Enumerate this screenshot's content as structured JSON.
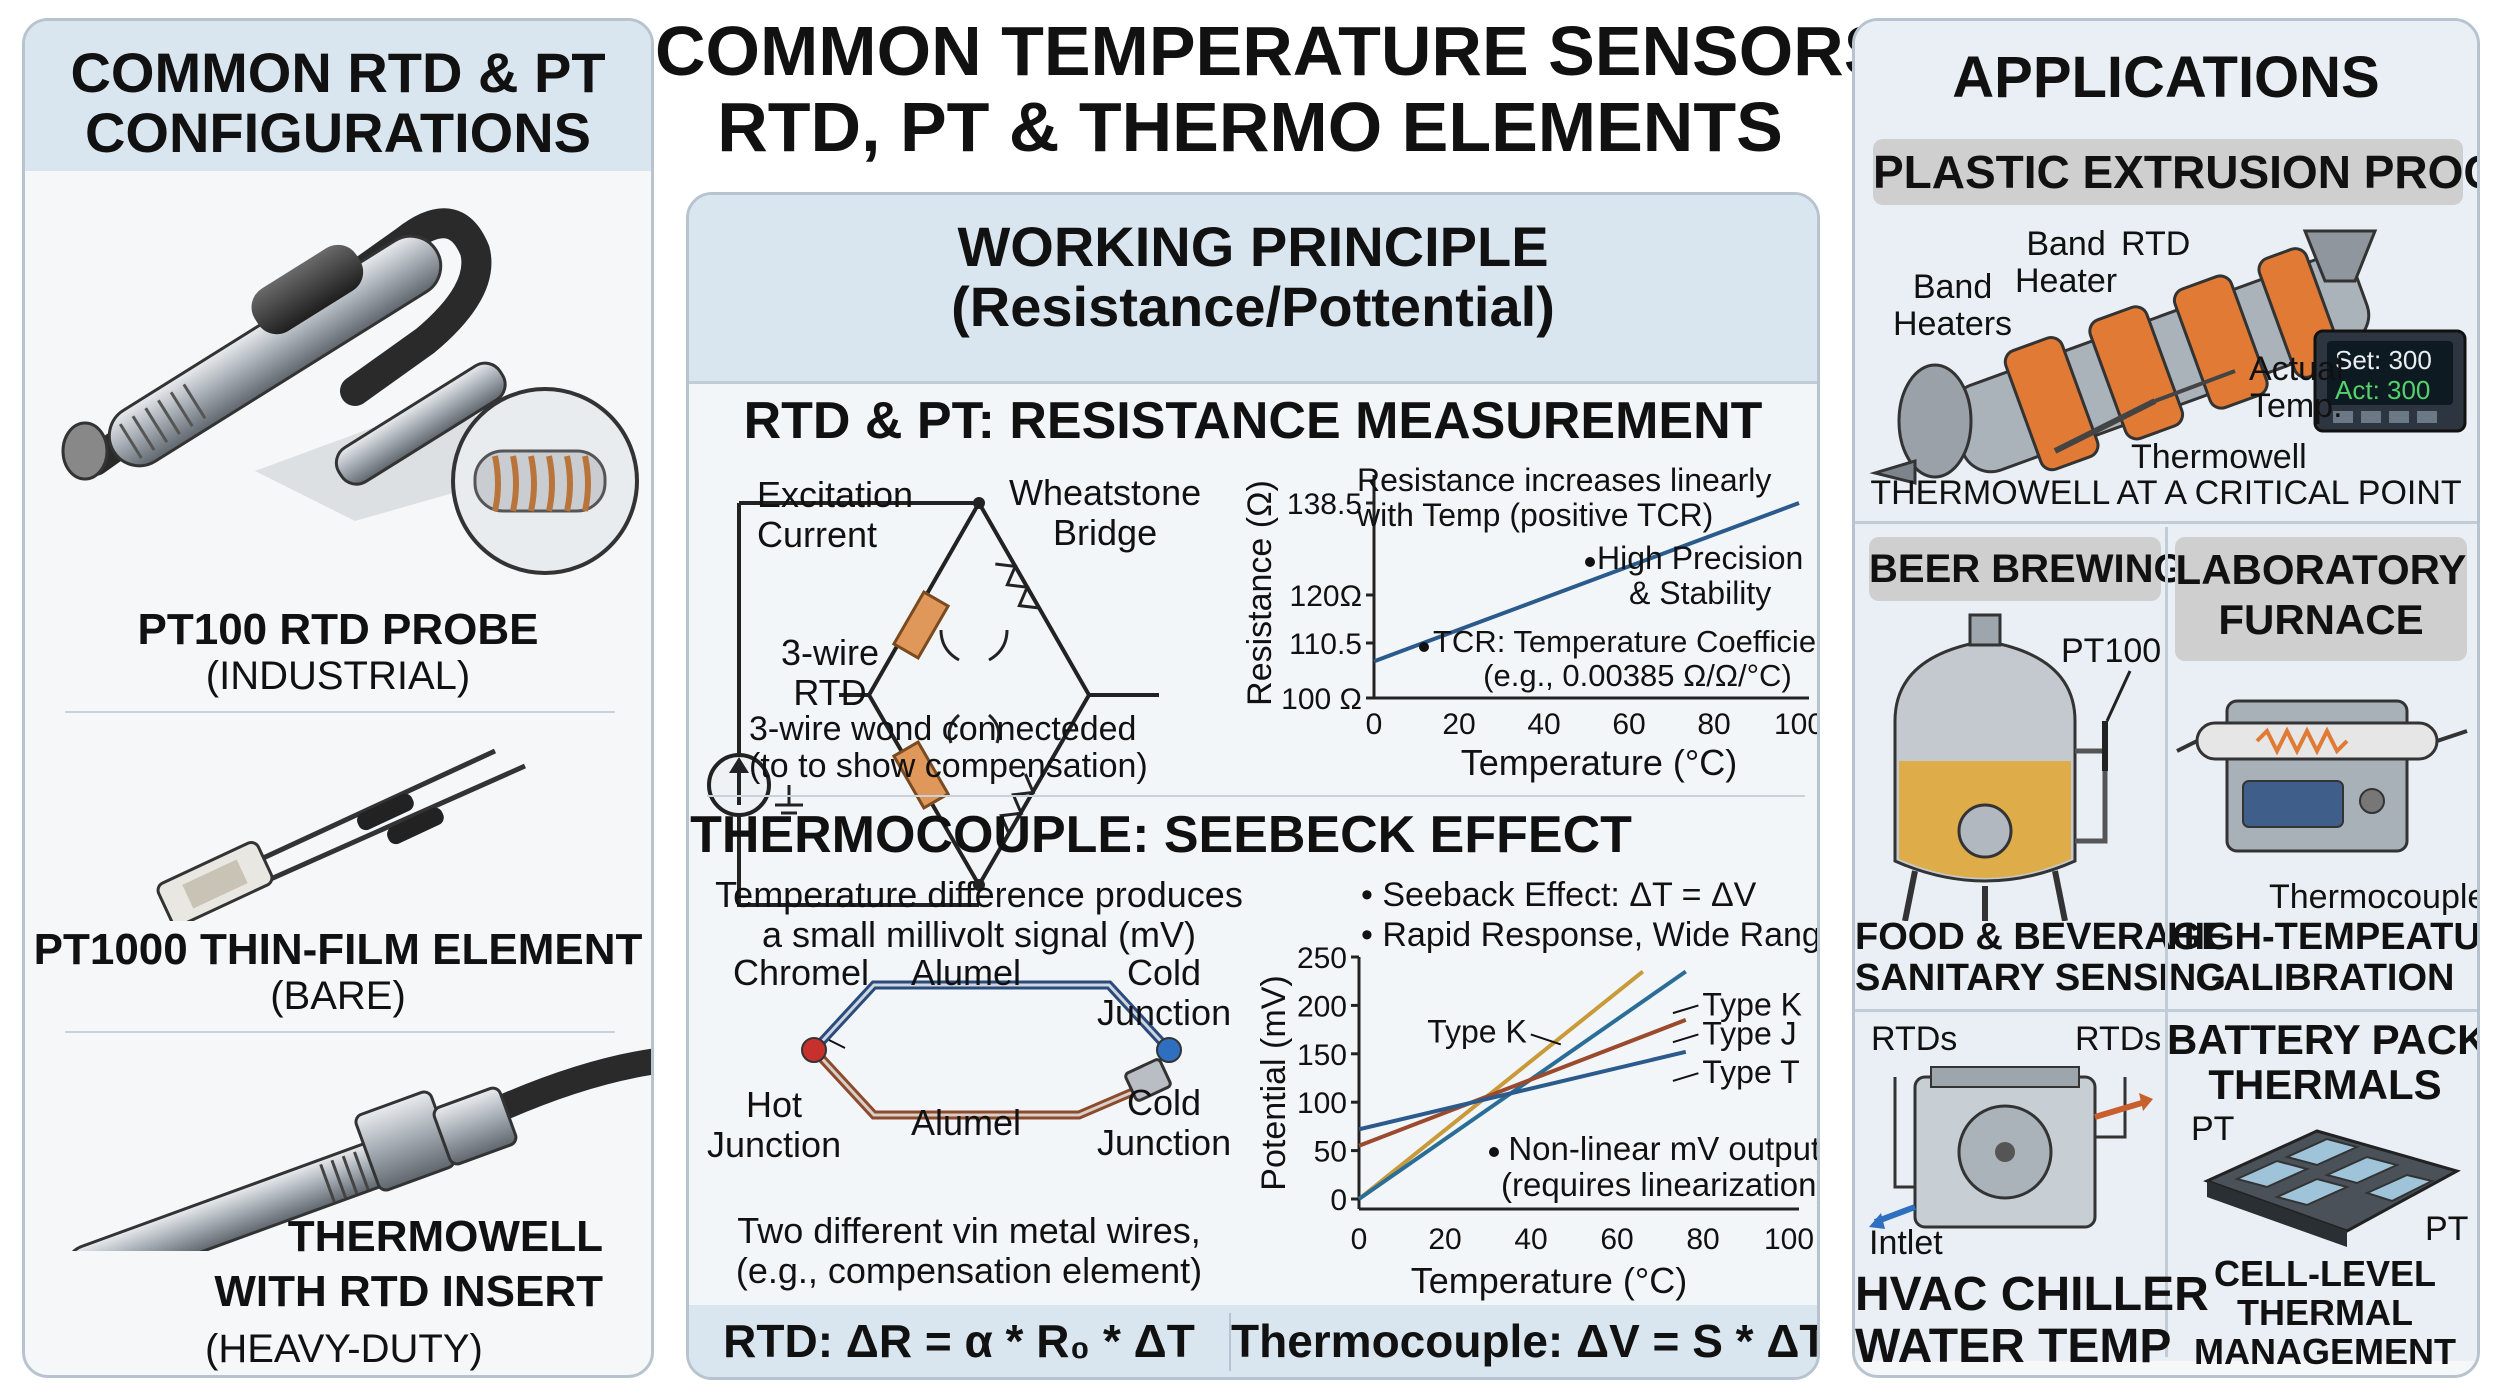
{
  "main_title": [
    "COMMON TEMPERATURE SENSORS:",
    "RTD, PT & THERMO ELEMENTS"
  ],
  "left": {
    "title": [
      "COMMON RTD & PT",
      "CONFIGURATIONS"
    ],
    "items": [
      {
        "name": "PT100 RTD PROBE",
        "sub": "(INDUSTRIAL)"
      },
      {
        "name": "PT1000 THIN-FILM ELEMENT",
        "sub": "(BARE)"
      },
      {
        "name": [
          "THERMOWELL",
          "WITH RTD INSERT"
        ],
        "sub": "(HEAVY-DUTY)"
      }
    ]
  },
  "center": {
    "title": [
      "WORKING PRINCIPLE",
      "(Resistance/Pottential)"
    ],
    "rtd": {
      "heading": "RTD & PT: RESISTANCE MEASUREMENT",
      "excitation": [
        "Excitation",
        "Current"
      ],
      "bridge": [
        "Wheatstone",
        "Bridge"
      ],
      "wire": [
        "3-wire",
        "RTD"
      ],
      "caption": [
        "3-wire wond connecteded",
        "(to to show compensation)"
      ],
      "note1": [
        "Resistance increases linearly",
        "with Temp (positive TCR)"
      ],
      "note2": [
        "High Precision",
        "& Stability"
      ],
      "note3": [
        "TCR: Temperature Coefficient",
        "(e.g., 0.00385 Ω/Ω/°C)"
      ]
    },
    "tc": {
      "heading": "THERMOCOUPLE: SEEBECK EFFECT",
      "desc": [
        "Temperature difference produces",
        "a small millivolt signal (mV)"
      ],
      "chromel": "Chromel",
      "alumel_top": "Alumel",
      "cold_top": [
        "Cold",
        "Junction"
      ],
      "hot": [
        "Hot",
        "Junction"
      ],
      "alumel_bottom": "Alumel",
      "cold_bottom": [
        "Cold",
        "Junction"
      ],
      "caption": [
        "Two different vin metal wires,",
        "(e.g., compensation element)"
      ],
      "bullet1": "Seeback Effect: ΔT = ΔV",
      "bullet2": "Rapid Response, Wide Range",
      "note": [
        "Non-linear mV output",
        "(requires linearization)"
      ]
    },
    "formula_rtd": "RTD: ΔR = α * R₀ * ΔT",
    "formula_tc": "Thermocouple: ΔV = S * ΔT"
  },
  "right": {
    "title": "APPLICATIONS",
    "plastic": {
      "chip": "PLASTIC EXTRUSION PROCESS",
      "band_heaters": [
        "Band",
        "Heaters"
      ],
      "band_heater": [
        "Band",
        "Heater"
      ],
      "rtd": "RTD",
      "actual": [
        "Actual",
        "Temp."
      ],
      "thermowell": "Thermowell",
      "caption": "THERMOWELL AT A CRITICAL POINT",
      "set_label": "Set: 300",
      "act_label": "Act: 300"
    },
    "beer": {
      "chip": "BEER BREWING",
      "pt100": "PT100",
      "caption": [
        "FOOD & BEVERAGE",
        "SANITARY SENSING"
      ]
    },
    "lab": {
      "chip": [
        "LABORATORY",
        "FURNACE"
      ],
      "thermocouple": "Thermocouple",
      "caption": [
        "HIGH-TEMPEATURE",
        "CALIBRATION"
      ]
    },
    "hvac": {
      "rtds_left": "RTDs",
      "rtds_right": "RTDs",
      "inlet": "Intlet",
      "caption": [
        "HVAC CHILLER",
        "WATER TEMP"
      ]
    },
    "battery": {
      "title": [
        "BATTERY PACK",
        "THERMALS"
      ],
      "pt1": "PT",
      "pt2": "PT",
      "caption": [
        "CELL-LEVEL",
        "THERMAL",
        "MANAGEMENT"
      ]
    }
  },
  "chart_data": [
    {
      "type": "line",
      "title": "",
      "xlabel": "Temperature (°C)",
      "ylabel": "Resistance (Ω)",
      "xlim": [
        0,
        100
      ],
      "x_ticks": [
        "0",
        "20",
        "40",
        "60",
        "80",
        "100"
      ],
      "y_ticks": [
        "100 Ω",
        "110.5",
        "120Ω",
        "138.5"
      ],
      "y_tick_values": [
        100,
        110.5,
        120,
        138.5
      ],
      "series": [
        {
          "x": [
            0,
            100
          ],
          "values": [
            107,
            138.5
          ],
          "color": "#2b5a8c"
        }
      ]
    },
    {
      "type": "line",
      "title": "",
      "xlabel": "Temperature (°C)",
      "ylabel": "Potential (mV)",
      "xlim": [
        0,
        100
      ],
      "ylim": [
        0,
        250
      ],
      "x_ticks": [
        "0",
        "20",
        "40",
        "60",
        "80",
        "100"
      ],
      "y_ticks": [
        "0",
        "50",
        "100",
        "150",
        "200",
        "250"
      ],
      "series": [
        {
          "name": "Type K",
          "x": [
            0,
            66
          ],
          "values": [
            0,
            235
          ],
          "color": "#c89a3a"
        },
        {
          "name": "Type J",
          "x": [
            0,
            76
          ],
          "values": [
            0,
            235
          ],
          "color": "#2a6e97"
        },
        {
          "name": "Type T",
          "x": [
            0,
            76
          ],
          "values": [
            55,
            185
          ],
          "color": "#9b4a2e"
        },
        {
          "name": "",
          "x": [
            0,
            76
          ],
          "values": [
            72,
            152
          ],
          "color": "#2b5a8c"
        }
      ]
    }
  ],
  "colors": {
    "panel_border": "#b7c4d0",
    "header_shade": "#d9e6ef",
    "chip_gray": "#cfcfcf",
    "line_blue": "#2b5a8c",
    "resistor_orange": "#e0985a"
  }
}
